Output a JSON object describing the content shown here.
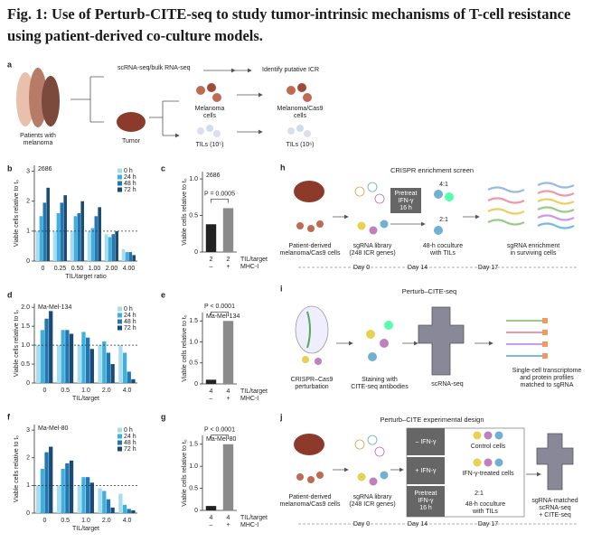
{
  "title": "Fig. 1: Use of Perturb-CITE-seq to study tumor-intrinsic mechanisms of T-cell resistance using patient-derived co-culture models.",
  "panel_a": {
    "label": "a",
    "scrna": "scRNA-seq/bulk RNA-seq",
    "identify": "Identify putative ICR",
    "patients": [
      "Patients with",
      "melanoma"
    ],
    "tumor": "Tumor",
    "melanoma_cells": [
      "Melanoma",
      "cells"
    ],
    "tils_small": "TILs (10⁵)",
    "cas9_cells": [
      "Melanoma/Cas9",
      "cells"
    ],
    "tils_large": "TILs (10⁶)"
  },
  "chart_data": [
    {
      "type": "bar",
      "panel_label": "b",
      "subtitle": "2686",
      "categories": [
        "0",
        "0.25",
        "0.50",
        "1.00",
        "2.00",
        "4.00"
      ],
      "series": [
        {
          "name": "0 h",
          "color": "#a8dcf0",
          "values": [
            1.0,
            1.0,
            1.0,
            1.0,
            0.9,
            0.4
          ]
        },
        {
          "name": "24 h",
          "color": "#3fb0de",
          "values": [
            1.5,
            1.6,
            1.5,
            1.1,
            0.8,
            0.3
          ]
        },
        {
          "name": "48 h",
          "color": "#1f78b4",
          "values": [
            1.95,
            1.95,
            1.6,
            1.5,
            0.9,
            0.3
          ]
        },
        {
          "name": "72 h",
          "color": "#1b4a75",
          "values": [
            2.45,
            2.2,
            2.0,
            1.8,
            1.0,
            0.2
          ]
        }
      ],
      "ylim": [
        0,
        3.2
      ],
      "yticks": [
        0,
        1,
        2,
        3
      ],
      "reference_line": 1,
      "xlabel": "TIL/target ratio",
      "ylabel": "Viable cells relative to t₀"
    },
    {
      "type": "bar",
      "panel_label": "c",
      "subtitle": "2686",
      "values": [
        0.38,
        0.6
      ],
      "colors": [
        "#222222",
        "#8a8a8a"
      ],
      "x_rows": [
        {
          "label": "TIL/target",
          "values": [
            "2",
            "2"
          ]
        },
        {
          "label": "MHC-I",
          "values": [
            "–",
            "+"
          ]
        }
      ],
      "annotation": "P = 0.0005",
      "ylim": [
        0,
        1.1
      ],
      "yticks": [
        0,
        0.5,
        {
          "value": 1,
          "label": "1.0"
        }
      ],
      "ylabel": "Viable cells relative to t₀"
    },
    {
      "type": "bar",
      "panel_label": "d",
      "subtitle": "Ma-Mel-134",
      "categories": [
        "0",
        "0.5",
        "1.0",
        "2.0",
        "4.0"
      ],
      "series": [
        {
          "name": "0 h",
          "color": "#a8dcf0",
          "values": [
            1.0,
            1.0,
            1.0,
            1.0,
            1.0
          ]
        },
        {
          "name": "24 h",
          "color": "#3fb0de",
          "values": [
            1.4,
            1.4,
            1.35,
            1.1,
            0.8
          ]
        },
        {
          "name": "48 h",
          "color": "#1f78b4",
          "values": [
            1.7,
            1.4,
            1.2,
            0.8,
            0.3
          ]
        },
        {
          "name": "72 h",
          "color": "#1b4a75",
          "values": [
            1.9,
            1.3,
            0.9,
            0.5,
            0.1
          ]
        }
      ],
      "ylim": [
        0,
        2.1
      ],
      "yticks": [
        0,
        0.5,
        {
          "value": 1,
          "label": "1.0"
        },
        1.5,
        {
          "value": 2,
          "label": "2.0"
        }
      ],
      "reference_line": 1,
      "xlabel": "TIL/target",
      "ylabel": "Viable cells relative to t₀"
    },
    {
      "type": "bar",
      "panel_label": "e",
      "subtitle": "Ma-Mel-134",
      "values": [
        0.1,
        1.5
      ],
      "colors": [
        "#222222",
        "#8a8a8a"
      ],
      "x_rows": [
        {
          "label": "TIL/target",
          "values": [
            "4",
            "4"
          ]
        },
        {
          "label": "MHC-I",
          "values": [
            "–",
            "+"
          ]
        }
      ],
      "annotation": "P < 0.0001",
      "ylim": [
        0,
        1.7
      ],
      "yticks": [
        0,
        0.5,
        {
          "value": 1,
          "label": "1.0"
        },
        1.5
      ],
      "ylabel": "Viable cells relative to t₀"
    },
    {
      "type": "bar",
      "panel_label": "f",
      "subtitle": "Ma-Mel-80",
      "categories": [
        "0",
        "0.5",
        "1.0",
        "2.0",
        "4.0"
      ],
      "series": [
        {
          "name": "0 h",
          "color": "#a8dcf0",
          "values": [
            1.0,
            1.0,
            1.0,
            0.9,
            0.7
          ]
        },
        {
          "name": "24 h",
          "color": "#3fb0de",
          "values": [
            1.6,
            1.6,
            1.3,
            0.8,
            0.3
          ]
        },
        {
          "name": "48 h",
          "color": "#1f78b4",
          "values": [
            2.2,
            1.8,
            1.3,
            0.5,
            0.15
          ]
        },
        {
          "name": "72 h",
          "color": "#1b4a75",
          "values": [
            2.4,
            1.9,
            1.1,
            0.2,
            0.1
          ]
        }
      ],
      "ylim": [
        0,
        3.2
      ],
      "yticks": [
        0,
        1,
        2,
        3
      ],
      "reference_line": 1,
      "xlabel": "TIL/target",
      "ylabel": "Viable cells relative to t₀"
    },
    {
      "type": "bar",
      "panel_label": "g",
      "subtitle": "Ma-Mel-80",
      "values": [
        0.1,
        1.5
      ],
      "colors": [
        "#222222",
        "#8a8a8a"
      ],
      "x_rows": [
        {
          "label": "TIL/target",
          "values": [
            "4",
            "4"
          ]
        },
        {
          "label": "MHC-I",
          "values": [
            "–",
            "+"
          ]
        }
      ],
      "annotation": "P < 0.0001",
      "ylim": [
        0,
        1.7
      ],
      "yticks": [
        0,
        0.5,
        {
          "value": 1,
          "label": "1.0"
        },
        1.5
      ],
      "ylabel": "Viable cells relative to t₀"
    }
  ],
  "panel_h": {
    "label": "h",
    "title": "CRISPR enrichment screen",
    "cells": [
      "Patient-derived",
      "melanoma/Cas9 cells"
    ],
    "library": [
      "sgRNA library",
      "(248 ICR genes)"
    ],
    "pretreat": [
      "Pretreat",
      "IFN-γ",
      "16 h"
    ],
    "ratio_high": "4:1",
    "ratio_low": "2:1",
    "coculture": [
      "48-h coculture",
      "with TILs"
    ],
    "enrichment": [
      "sgRNA enrichment",
      "in surviving cells"
    ],
    "day0": "Day 0",
    "day14": "Day 14",
    "day17": "Day 17"
  },
  "panel_i": {
    "label": "i",
    "title": "Perturb–CITE-seq",
    "perturbation": [
      "CRISPR–Cas9",
      "perturbation"
    ],
    "staining": [
      "Staining with",
      "CITE-seq antibodies"
    ],
    "scrna": "scRNA-seq",
    "profiles": [
      "Single-cell transcriptome",
      "and protein profiles",
      "matched to sgRNA"
    ]
  },
  "panel_j": {
    "label": "j",
    "title": "Perturb–CITE experimental design",
    "cells": [
      "Patient-derived",
      "melanoma/Cas9 cells"
    ],
    "library": [
      "sgRNA library",
      "(248 ICR genes)"
    ],
    "minus_ifn": "– IFN-γ",
    "control": "Control cells",
    "plus_ifn": "+ IFN-γ",
    "treated": "IFN-γ-treated cells",
    "pretreat": [
      "Pretreat",
      "IFN-γ",
      "16 h"
    ],
    "ratio": "2:1",
    "coculture": [
      "48-h coculture",
      "with TILs"
    ],
    "readout": [
      "sgRNA-matched",
      "scRNA-seq",
      "+ CITE-seq"
    ],
    "day0": "Day 0",
    "day14": "Day 14",
    "day17": "Day 17"
  }
}
